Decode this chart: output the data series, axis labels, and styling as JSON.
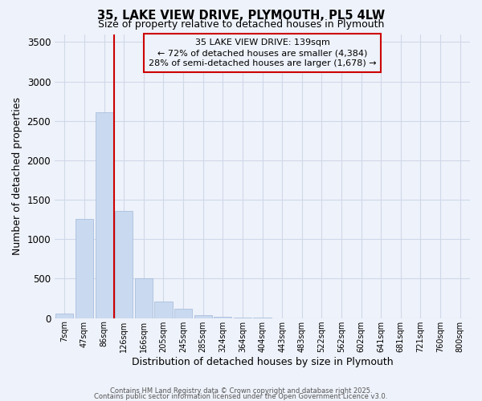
{
  "title": "35, LAKE VIEW DRIVE, PLYMOUTH, PL5 4LW",
  "subtitle": "Size of property relative to detached houses in Plymouth",
  "xlabel": "Distribution of detached houses by size in Plymouth",
  "ylabel": "Number of detached properties",
  "bar_labels": [
    "7sqm",
    "47sqm",
    "86sqm",
    "126sqm",
    "166sqm",
    "205sqm",
    "245sqm",
    "285sqm",
    "324sqm",
    "364sqm",
    "404sqm",
    "443sqm",
    "483sqm",
    "522sqm",
    "562sqm",
    "602sqm",
    "641sqm",
    "681sqm",
    "721sqm",
    "760sqm",
    "800sqm"
  ],
  "bar_values": [
    55,
    1255,
    2610,
    1355,
    500,
    205,
    115,
    40,
    15,
    5,
    2,
    1,
    0,
    0,
    0,
    0,
    0,
    0,
    0,
    0,
    0
  ],
  "bar_color": "#c9d9f0",
  "bar_edgecolor": "#a0b8d8",
  "property_line_color": "#cc0000",
  "ylim": [
    0,
    3600
  ],
  "yticks": [
    0,
    500,
    1000,
    1500,
    2000,
    2500,
    3000,
    3500
  ],
  "annotation_title": "35 LAKE VIEW DRIVE: 139sqm",
  "annotation_line1": "← 72% of detached houses are smaller (4,384)",
  "annotation_line2": "28% of semi-detached houses are larger (1,678) →",
  "annotation_box_color": "#cc0000",
  "grid_color": "#d0d8e8",
  "background_color": "#eef2fa",
  "footer1": "Contains HM Land Registry data © Crown copyright and database right 2025.",
  "footer2": "Contains public sector information licensed under the Open Government Licence v3.0."
}
